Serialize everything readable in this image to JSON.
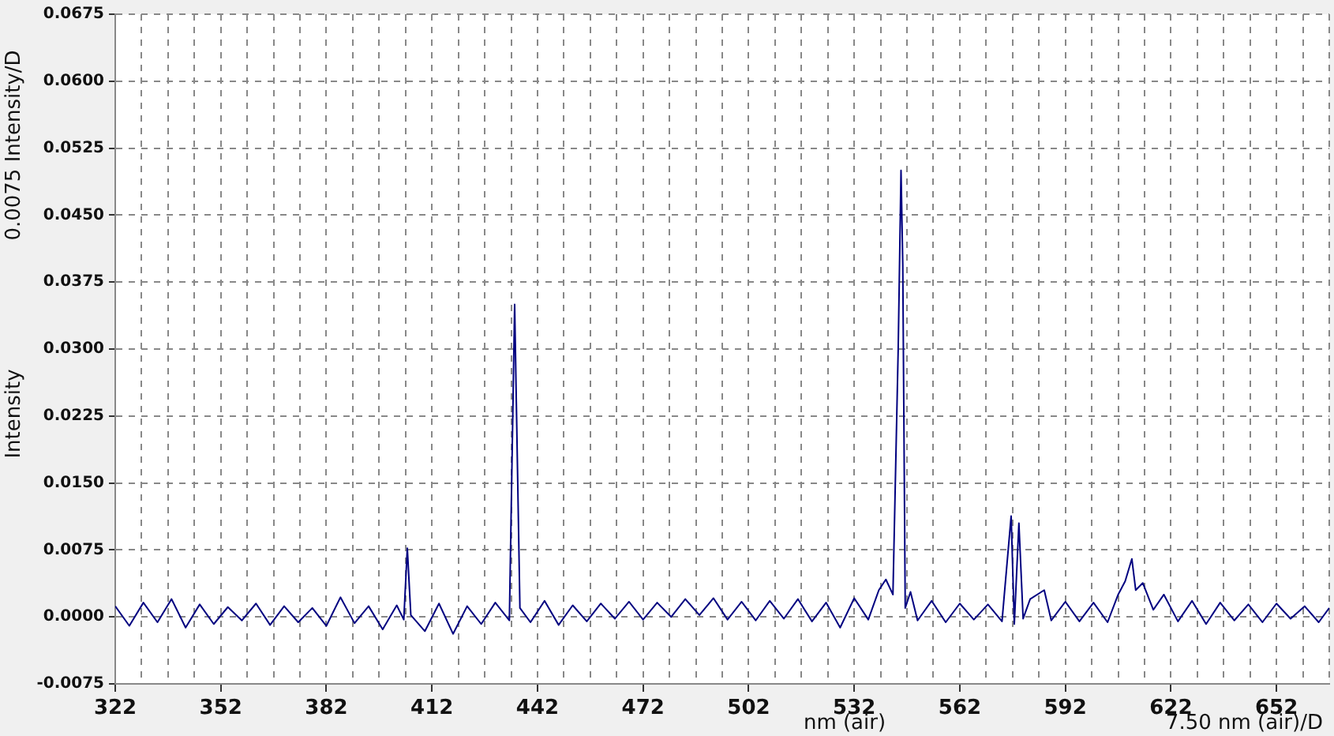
{
  "chart_data": {
    "type": "line",
    "ylabel": "Intensity",
    "xlabel": "nm (air)",
    "annotations": [
      "0.0075 Intensity/D",
      "7.50 nm (air)/D"
    ],
    "xlim": [
      322,
      667
    ],
    "xticks": [
      322,
      {
        "value": 329.5,
        "label": null
      },
      {
        "value": 337,
        "label": null
      },
      {
        "value": 344.5,
        "label": null
      },
      352,
      {
        "value": 359.5,
        "label": null
      },
      {
        "value": 367,
        "label": null
      },
      {
        "value": 374.5,
        "label": null
      },
      382,
      {
        "value": 389.5,
        "label": null
      },
      {
        "value": 397,
        "label": null
      },
      {
        "value": 404.5,
        "label": null
      },
      412,
      {
        "value": 419.5,
        "label": null
      },
      {
        "value": 427,
        "label": null
      },
      {
        "value": 434.5,
        "label": null
      },
      442,
      {
        "value": 449.5,
        "label": null
      },
      {
        "value": 457,
        "label": null
      },
      {
        "value": 464.5,
        "label": null
      },
      472,
      {
        "value": 479.5,
        "label": null
      },
      {
        "value": 487,
        "label": null
      },
      {
        "value": 494.5,
        "label": null
      },
      502,
      {
        "value": 509.5,
        "label": null
      },
      {
        "value": 517,
        "label": null
      },
      {
        "value": 524.5,
        "label": null
      },
      532,
      {
        "value": 539.5,
        "label": null
      },
      {
        "value": 547,
        "label": null
      },
      {
        "value": 554.5,
        "label": null
      },
      562,
      {
        "value": 569.5,
        "label": null
      },
      {
        "value": 577,
        "label": null
      },
      {
        "value": 584.5,
        "label": null
      },
      592,
      {
        "value": 599.5,
        "label": null
      },
      {
        "value": 607,
        "label": null
      },
      {
        "value": 614.5,
        "label": null
      },
      622,
      {
        "value": 629.5,
        "label": null
      },
      {
        "value": 637,
        "label": null
      },
      {
        "value": 644.5,
        "label": null
      },
      652,
      {
        "value": 659.5,
        "label": null
      },
      {
        "value": 667,
        "label": null
      }
    ],
    "ylim": [
      -0.0075,
      0.0675
    ],
    "yticks": [
      {
        "value": -0.0075,
        "label": "-0.0075"
      },
      {
        "value": 0,
        "label": "0.0000"
      },
      {
        "value": 0.0075,
        "label": "0.0075"
      },
      {
        "value": 0.015,
        "label": "0.0150"
      },
      {
        "value": 0.0225,
        "label": "0.0225"
      },
      {
        "value": 0.03,
        "label": "0.0300"
      },
      {
        "value": 0.0375,
        "label": "0.0375"
      },
      {
        "value": 0.045,
        "label": "0.0450"
      },
      {
        "value": 0.0525,
        "label": "0.0525"
      },
      {
        "value": 0.06,
        "label": "0.0600"
      },
      {
        "value": 0.0675,
        "label": "0.0675"
      }
    ],
    "grid": true,
    "legend": false,
    "marker": "none",
    "series": [
      {
        "color": "#000080",
        "x": [
          322,
          326,
          330,
          334,
          338,
          342,
          346,
          350,
          354,
          358,
          362,
          366,
          370,
          374,
          378,
          382,
          386,
          390,
          394,
          398,
          402,
          404,
          405,
          406,
          410,
          414,
          418,
          422,
          426,
          430,
          434,
          435.5,
          437,
          440,
          444,
          448,
          452,
          456,
          460,
          464,
          468,
          472,
          476,
          480,
          484,
          488,
          492,
          496,
          500,
          504,
          508,
          512,
          516,
          520,
          524,
          528,
          532,
          536,
          539,
          541,
          543,
          544.5,
          545.3,
          545.8,
          546.5,
          548,
          550,
          554,
          558,
          562,
          566,
          570,
          574,
          576.6,
          577.5,
          578.8,
          580,
          582,
          586,
          588,
          592,
          596,
          600,
          604,
          607,
          609,
          610.9,
          612,
          614,
          617,
          620,
          624,
          628,
          632,
          636,
          640,
          644,
          648,
          652,
          656,
          660,
          664,
          667
        ],
        "values": [
          0.0012,
          -0.001,
          0.0016,
          -0.0006,
          0.002,
          -0.0012,
          0.0014,
          -0.0008,
          0.0011,
          -0.0004,
          0.0015,
          -0.0009,
          0.0012,
          -0.0006,
          0.001,
          -0.001,
          0.0022,
          -0.0007,
          0.0012,
          -0.0014,
          0.0013,
          -0.0003,
          0.0077,
          0.0002,
          -0.0016,
          0.0015,
          -0.0019,
          0.0012,
          -0.0008,
          0.0016,
          -0.0004,
          0.035,
          0.001,
          -0.0006,
          0.0018,
          -0.0009,
          0.0013,
          -0.0005,
          0.0015,
          -0.0002,
          0.0017,
          -0.0003,
          0.0016,
          0,
          0.002,
          0.0002,
          0.0021,
          -0.0003,
          0.0017,
          -0.0004,
          0.0018,
          -0.0002,
          0.002,
          -0.0005,
          0.0016,
          -0.0012,
          0.0021,
          -0.0003,
          0.003,
          0.0042,
          0.0025,
          0.03,
          0.05,
          0.0395,
          0.001,
          0.0028,
          -0.0004,
          0.0018,
          -0.0006,
          0.0015,
          -0.0003,
          0.0014,
          -0.0005,
          0.0113,
          -0.0008,
          0.0105,
          -0.0002,
          0.002,
          0.003,
          -0.0004,
          0.0017,
          -0.0005,
          0.0016,
          -0.0006,
          0.0025,
          0.004,
          0.0065,
          0.003,
          0.0038,
          0.0008,
          0.0025,
          -0.0005,
          0.0018,
          -0.0008,
          0.0016,
          -0.0004,
          0.0014,
          -0.0006,
          0.0015,
          -0.0002,
          0.0012,
          -0.0006,
          0.001
        ]
      }
    ]
  }
}
